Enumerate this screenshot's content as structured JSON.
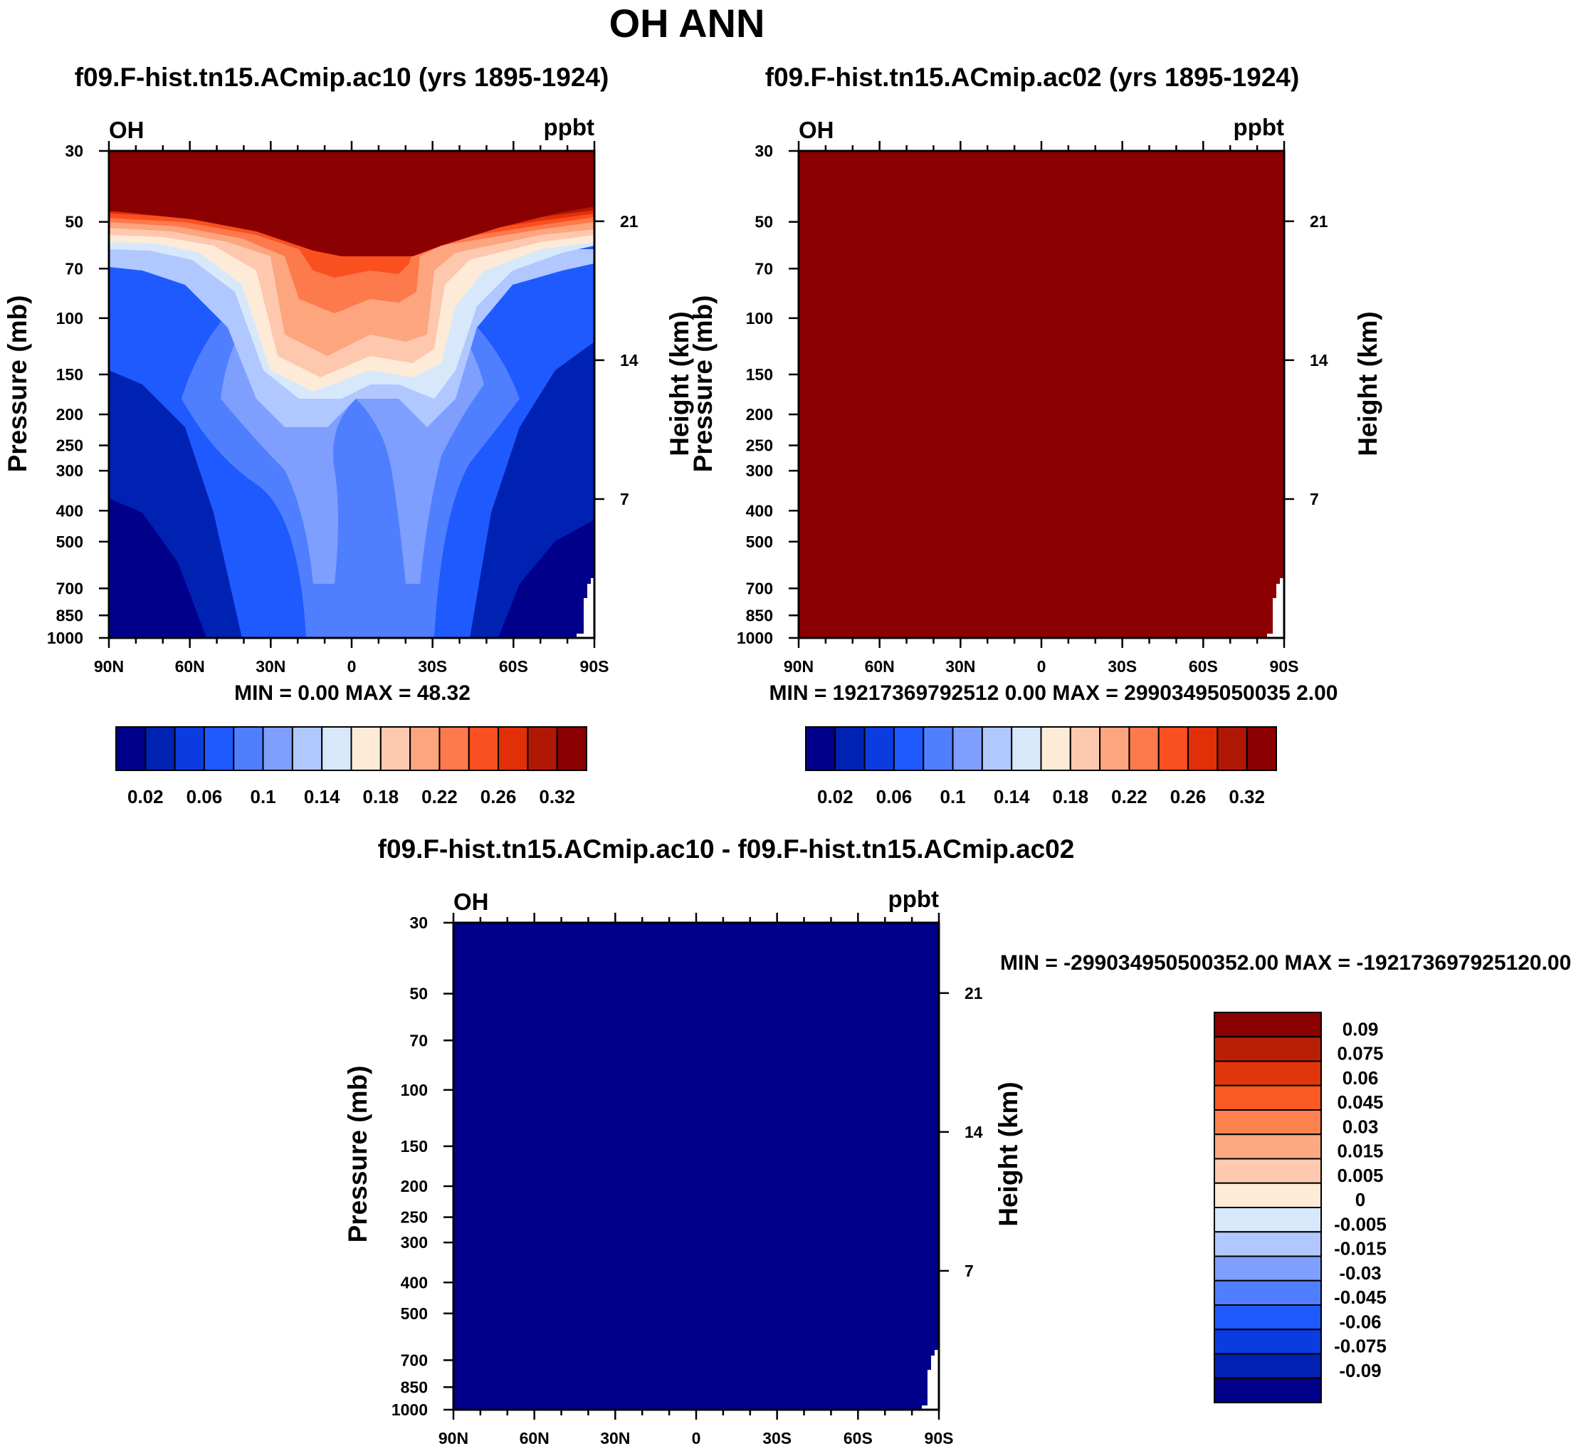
{
  "figure_title": "OH ANN",
  "pressure_ticks": [
    "30",
    "50",
    "70",
    "100",
    "150",
    "200",
    "250",
    "300",
    "400",
    "500",
    "700",
    "850",
    "1000"
  ],
  "pressure_values": [
    30,
    50,
    70,
    100,
    150,
    200,
    250,
    300,
    400,
    500,
    700,
    850,
    1000
  ],
  "height_ticks": [
    "21",
    "14",
    "7"
  ],
  "height_values": [
    21,
    14,
    7
  ],
  "lat_ticks": [
    "90N",
    "60N",
    "30N",
    "0",
    "30S",
    "60S",
    "90S"
  ],
  "left_axis_label": "Pressure (mb)",
  "right_axis_label": "Height (km)",
  "panel1": {
    "title": "f09.F-hist.tn15.ACmip.ac10 (yrs 1895-1924)",
    "var": "OH",
    "units": "ppbt",
    "min_max": "MIN =    0.00   MAX =  48.32"
  },
  "panel2": {
    "title": "f09.F-hist.tn15.ACmip.ac02 (yrs 1895-1924)",
    "var": "OH",
    "units": "ppbt",
    "min_max": "MIN = 19217369792512 0.00   MAX = 29903495050035 2.00"
  },
  "panel3": {
    "title": "f09.F-hist.tn15.ACmip.ac10 - f09.F-hist.tn15.ACmip.ac02",
    "var": "OH",
    "units": "ppbt",
    "min_max": "MIN = -299034950500352.00   MAX = -192173697925120.00"
  },
  "colorbar_top": {
    "colors": [
      "#00008b",
      "#0022b3",
      "#0a3ce0",
      "#1f5aff",
      "#4f7fff",
      "#7f9fff",
      "#b0c8ff",
      "#d8e8fb",
      "#fdebd8",
      "#fdc8ae",
      "#fca57f",
      "#fc7a4c",
      "#fa5020",
      "#e13008",
      "#b01806",
      "#8b0000"
    ],
    "labels": [
      "0.02",
      "0.06",
      "0.1",
      "0.14",
      "0.18",
      "0.22",
      "0.26",
      "0.32"
    ]
  },
  "colorbar_diff": {
    "colors": [
      "#8b0000",
      "#b82005",
      "#e0360b",
      "#fb5a22",
      "#fc8250",
      "#fca983",
      "#fdcab0",
      "#fdebd8",
      "#d8e8fb",
      "#b0c8ff",
      "#7f9fff",
      "#4f7fff",
      "#1f5aff",
      "#0a3ce0",
      "#0022b3",
      "#00008b"
    ],
    "labels": [
      "0.09",
      "0.075",
      "0.06",
      "0.045",
      "0.03",
      "0.015",
      "0.005",
      "0",
      "-0.005",
      "-0.015",
      "-0.03",
      "-0.045",
      "-0.06",
      "-0.075",
      "-0.09"
    ]
  },
  "chart_data": [
    {
      "type": "heatmap",
      "title": "f09.F-hist.tn15.ACmip.ac10 (yrs 1895-1924)",
      "x_ticks": [
        "90N",
        "60N",
        "30N",
        "0",
        "30S",
        "60S",
        "90S"
      ],
      "xlim": [
        90,
        -90
      ],
      "ylabel": "Pressure (mb)",
      "y2label": "Height (km)",
      "ylim": [
        1000,
        30
      ],
      "ylog": true,
      "levels": [
        0.02,
        0.04,
        0.06,
        0.08,
        0.1,
        0.12,
        0.14,
        0.16,
        0.18,
        0.2,
        0.22,
        0.24,
        0.26,
        0.28,
        0.32
      ],
      "min": 0.0,
      "max": 48.32,
      "units": "ppbt"
    },
    {
      "type": "heatmap",
      "title": "f09.F-hist.tn15.ACmip.ac02 (yrs 1895-1924)",
      "x_ticks": [
        "90N",
        "60N",
        "30N",
        "0",
        "30S",
        "60S",
        "90S"
      ],
      "xlim": [
        90,
        -90
      ],
      "ylabel": "Pressure (mb)",
      "y2label": "Height (km)",
      "ylim": [
        1000,
        30
      ],
      "ylog": true,
      "min": 192173697925120.0,
      "max": 299034950500352.0,
      "units": "ppbt"
    },
    {
      "type": "heatmap",
      "title": "f09.F-hist.tn15.ACmip.ac10 - f09.F-hist.tn15.ACmip.ac02",
      "x_ticks": [
        "90N",
        "60N",
        "30N",
        "0",
        "30S",
        "60S",
        "90S"
      ],
      "xlim": [
        90,
        -90
      ],
      "ylabel": "Pressure (mb)",
      "y2label": "Height (km)",
      "ylim": [
        1000,
        30
      ],
      "ylog": true,
      "levels": [
        -0.09,
        -0.075,
        -0.06,
        -0.045,
        -0.03,
        -0.015,
        -0.005,
        0,
        0.005,
        0.015,
        0.03,
        0.045,
        0.06,
        0.075,
        0.09
      ],
      "min": -299034950500352.0,
      "max": -192173697925120.0,
      "units": "ppbt"
    }
  ]
}
